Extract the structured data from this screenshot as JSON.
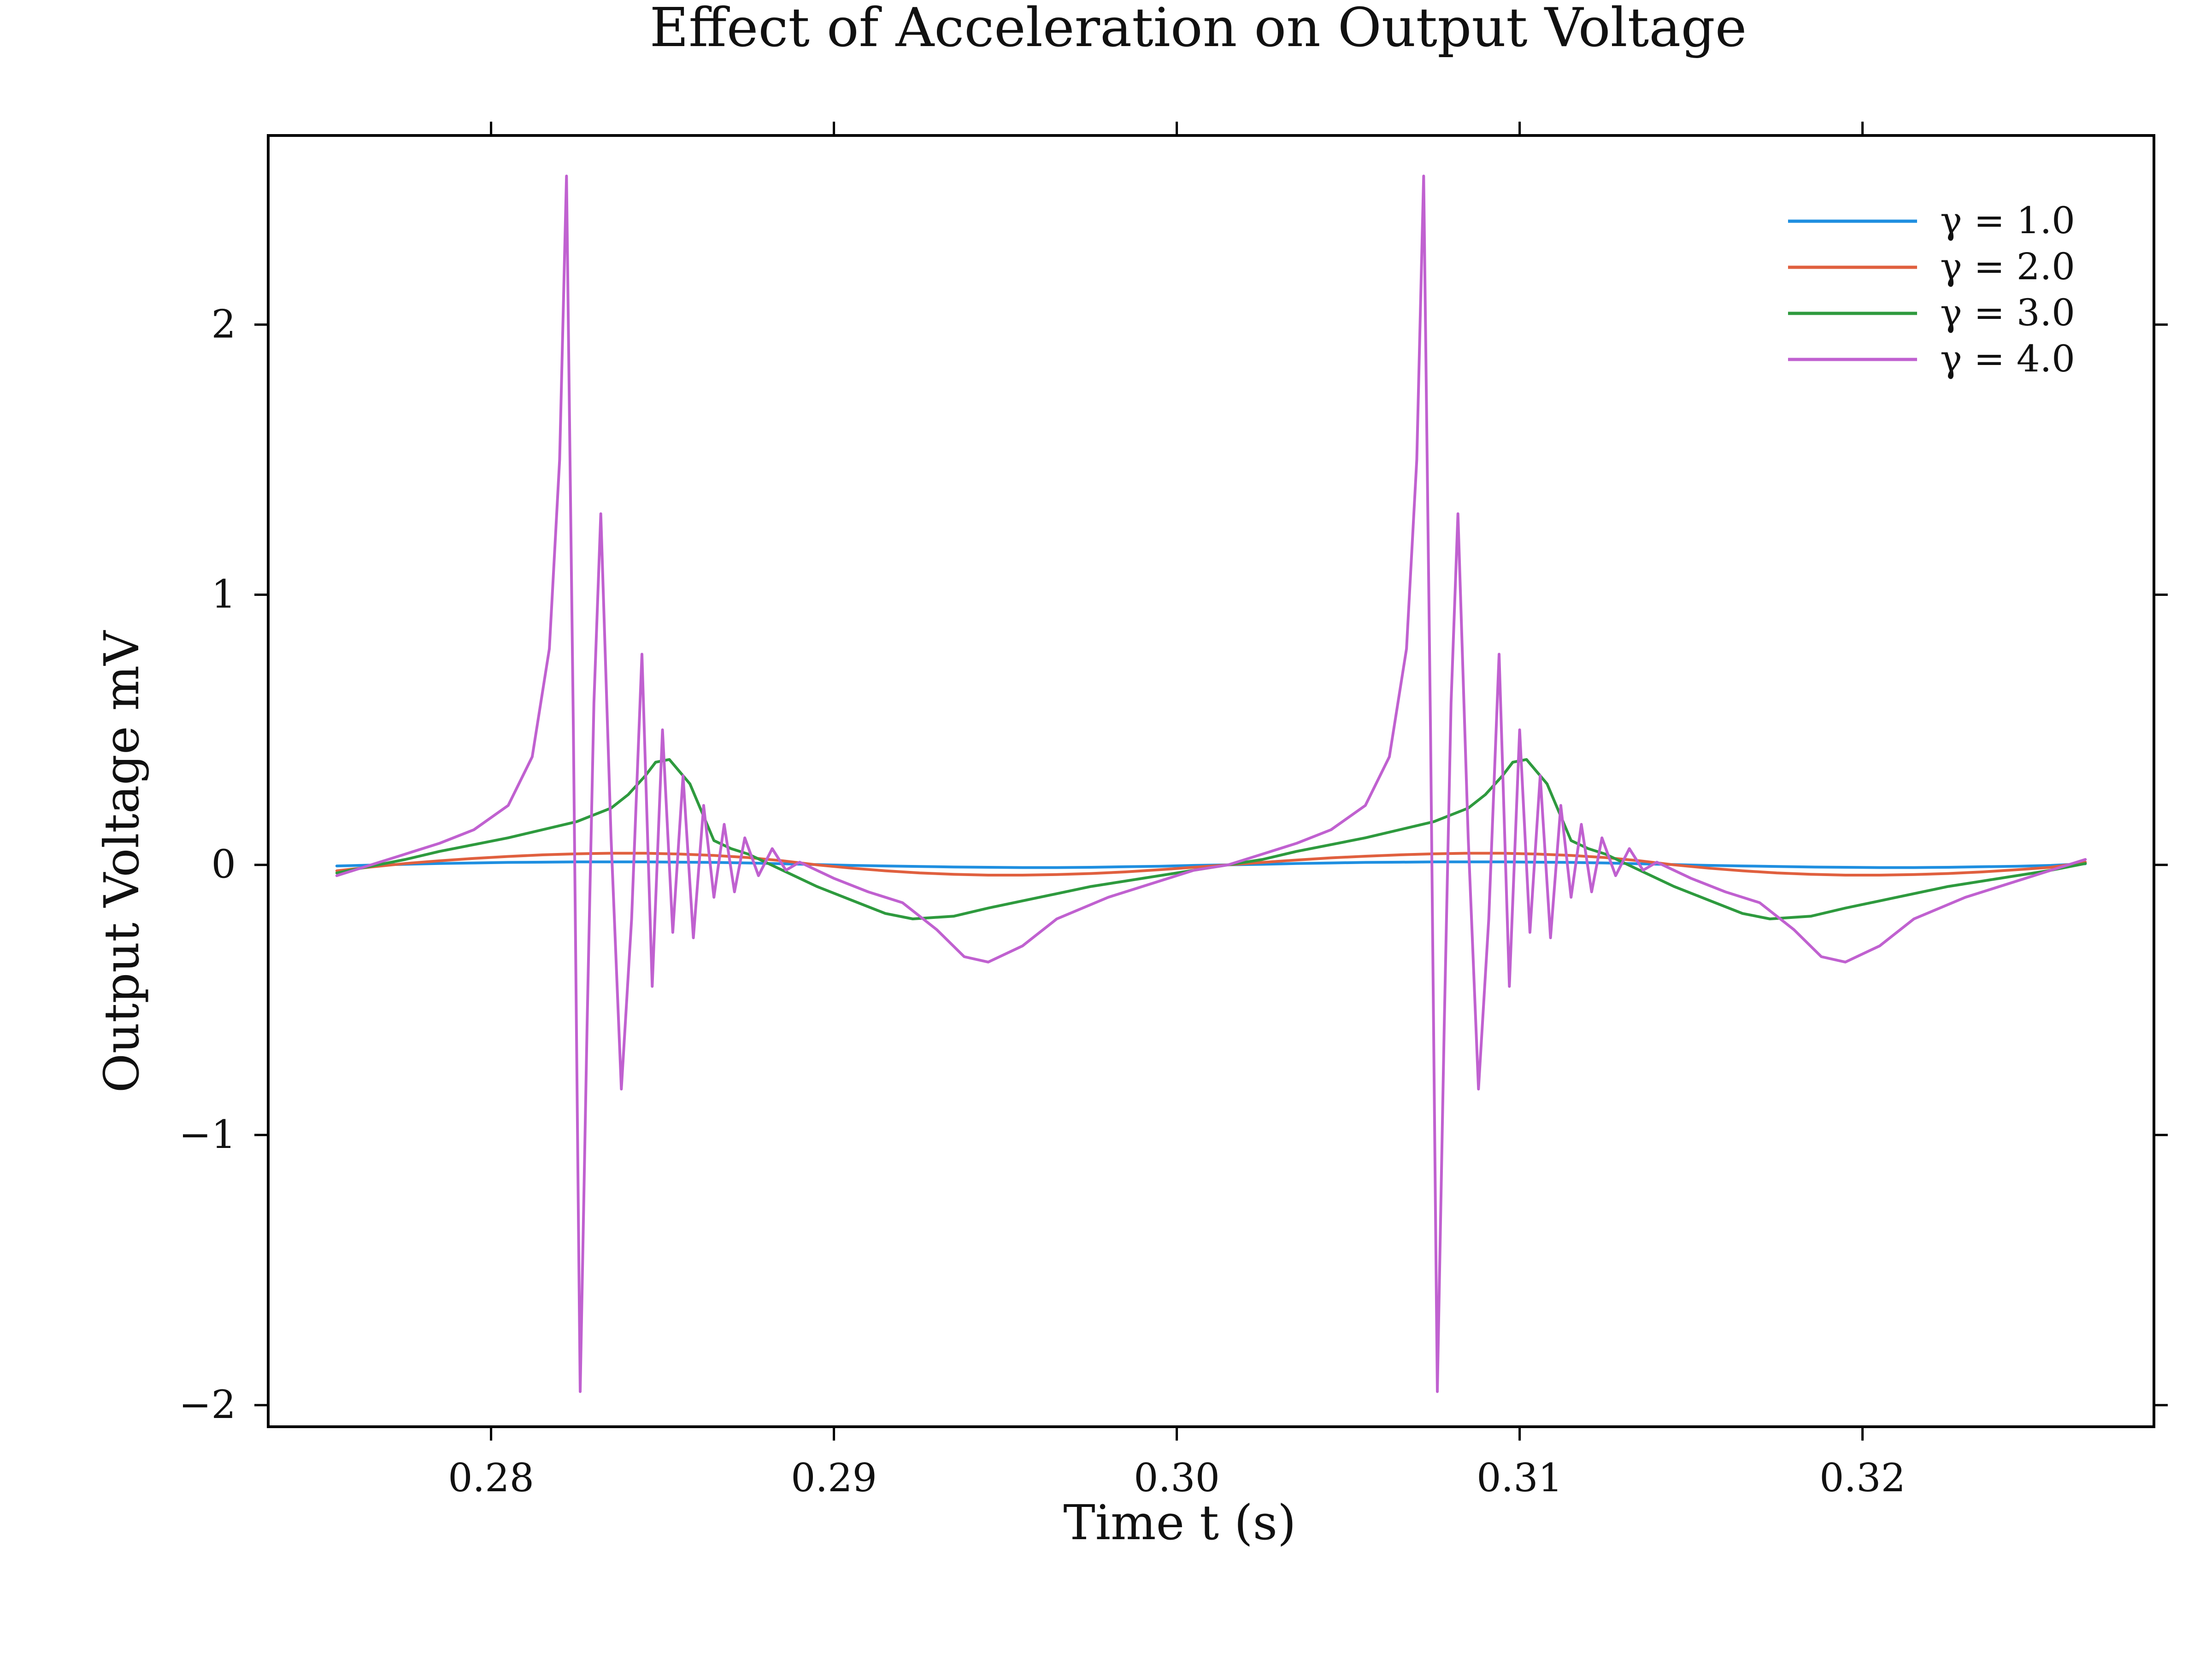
{
  "chart_data": {
    "type": "line",
    "title": "Effect of Acceleration on Output Voltage",
    "xlabel": "Time t (s)",
    "ylabel": "Output Voltage mV",
    "xlim": [
      0.2735,
      0.3285
    ],
    "ylim": [
      -2.08,
      2.7
    ],
    "x_ticks": [
      0.28,
      0.29,
      0.3,
      0.31,
      0.32
    ],
    "x_tick_labels": [
      "0.28",
      "0.29",
      "0.30",
      "0.31",
      "0.32"
    ],
    "y_ticks": [
      -2,
      -1,
      0,
      1,
      2
    ],
    "y_tick_labels": [
      "−2",
      "−1",
      "0",
      "1",
      "2"
    ],
    "grid": false,
    "legend_position": "top-right",
    "period": 0.025,
    "series": [
      {
        "name": "γ = 1.0",
        "color": "#1f8fe0",
        "x": [
          0.2755,
          0.2765,
          0.2775,
          0.2785,
          0.2795,
          0.2805,
          0.2815,
          0.2825,
          0.2835,
          0.2845,
          0.2855,
          0.2865,
          0.2875,
          0.2885,
          0.2895,
          0.2905,
          0.2915,
          0.2925,
          0.2935,
          0.2945,
          0.2955,
          0.2965,
          0.2975,
          0.2985,
          0.2995,
          0.3005,
          0.3015,
          0.3025,
          0.3035,
          0.3045,
          0.3055,
          0.3065,
          0.3075,
          0.3085,
          0.3095,
          0.3105,
          0.3115,
          0.3125,
          0.3135,
          0.3145,
          0.3155,
          0.3165,
          0.3175,
          0.3185,
          0.3195,
          0.3205,
          0.3215,
          0.3225,
          0.3235,
          0.3245,
          0.3255,
          0.3265
        ],
        "y": [
          -0.004,
          -0.001,
          0.002,
          0.005,
          0.007,
          0.009,
          0.01,
          0.011,
          0.011,
          0.011,
          0.01,
          0.009,
          0.007,
          0.004,
          0.001,
          -0.002,
          -0.004,
          -0.006,
          -0.008,
          -0.009,
          -0.01,
          -0.01,
          -0.009,
          -0.007,
          -0.005,
          -0.002,
          0.0,
          0.002,
          0.005,
          0.007,
          0.009,
          0.01,
          0.011,
          0.011,
          0.011,
          0.01,
          0.009,
          0.007,
          0.004,
          0.001,
          -0.002,
          -0.004,
          -0.006,
          -0.008,
          -0.009,
          -0.01,
          -0.01,
          -0.009,
          -0.007,
          -0.005,
          -0.002,
          0.004
        ]
      },
      {
        "name": "γ = 2.0",
        "color": "#e0603f",
        "x": [
          0.2755,
          0.2765,
          0.2775,
          0.2785,
          0.2795,
          0.2805,
          0.2815,
          0.2825,
          0.2835,
          0.2845,
          0.2855,
          0.2865,
          0.2875,
          0.2885,
          0.2895,
          0.2905,
          0.2915,
          0.2925,
          0.2935,
          0.2945,
          0.2955,
          0.2965,
          0.2975,
          0.2985,
          0.2995,
          0.3005,
          0.3015,
          0.3025,
          0.3035,
          0.3045,
          0.3055,
          0.3065,
          0.3075,
          0.3085,
          0.3095,
          0.3105,
          0.3115,
          0.3125,
          0.3135,
          0.3145,
          0.3155,
          0.3165,
          0.3175,
          0.3185,
          0.3195,
          0.3205,
          0.3215,
          0.3225,
          0.3235,
          0.3245,
          0.3255,
          0.3265
        ],
        "y": [
          -0.022,
          -0.008,
          0.005,
          0.015,
          0.024,
          0.031,
          0.037,
          0.041,
          0.043,
          0.043,
          0.04,
          0.035,
          0.027,
          0.015,
          0.0,
          -0.012,
          -0.022,
          -0.03,
          -0.035,
          -0.038,
          -0.038,
          -0.036,
          -0.032,
          -0.026,
          -0.018,
          -0.009,
          0.0,
          0.009,
          0.018,
          0.026,
          0.032,
          0.037,
          0.041,
          0.043,
          0.043,
          0.04,
          0.035,
          0.027,
          0.015,
          0.0,
          -0.012,
          -0.022,
          -0.03,
          -0.035,
          -0.038,
          -0.038,
          -0.036,
          -0.032,
          -0.026,
          -0.018,
          -0.009,
          0.01
        ]
      },
      {
        "name": "γ = 3.0",
        "color": "#2e9a3e",
        "x": [
          0.2755,
          0.2765,
          0.2775,
          0.2785,
          0.2795,
          0.2805,
          0.2815,
          0.2825,
          0.2835,
          0.284,
          0.2845,
          0.2848,
          0.2852,
          0.2858,
          0.2865,
          0.287,
          0.2875,
          0.2885,
          0.2895,
          0.2905,
          0.2915,
          0.2923,
          0.2935,
          0.2945,
          0.296,
          0.2975,
          0.299,
          0.3005,
          0.3015,
          0.3025,
          0.3035,
          0.3045,
          0.3055,
          0.3065,
          0.3075,
          0.3085,
          0.309,
          0.3095,
          0.3098,
          0.3102,
          0.3108,
          0.3115,
          0.312,
          0.3125,
          0.3135,
          0.3145,
          0.3155,
          0.3165,
          0.3173,
          0.3185,
          0.3195,
          0.321,
          0.3225,
          0.324,
          0.3255,
          0.3265
        ],
        "y": [
          -0.03,
          -0.005,
          0.02,
          0.05,
          0.075,
          0.1,
          0.13,
          0.16,
          0.21,
          0.26,
          0.33,
          0.38,
          0.39,
          0.3,
          0.09,
          0.06,
          0.04,
          -0.02,
          -0.08,
          -0.13,
          -0.18,
          -0.2,
          -0.19,
          -0.16,
          -0.12,
          -0.08,
          -0.05,
          -0.02,
          0.0,
          0.02,
          0.05,
          0.075,
          0.1,
          0.13,
          0.16,
          0.21,
          0.26,
          0.33,
          0.38,
          0.39,
          0.3,
          0.09,
          0.06,
          0.04,
          -0.02,
          -0.08,
          -0.13,
          -0.18,
          -0.2,
          -0.19,
          -0.16,
          -0.12,
          -0.08,
          -0.05,
          -0.02,
          0.005
        ]
      },
      {
        "name": "γ = 4.0",
        "color": "#c061d0",
        "x": [
          0.2755,
          0.2765,
          0.2775,
          0.2785,
          0.2795,
          0.2805,
          0.2812,
          0.2817,
          0.282,
          0.2822,
          0.2824,
          0.2826,
          0.2828,
          0.283,
          0.2832,
          0.2835,
          0.2838,
          0.2841,
          0.2844,
          0.2847,
          0.285,
          0.2853,
          0.2856,
          0.2859,
          0.2862,
          0.2865,
          0.2868,
          0.2871,
          0.2874,
          0.2878,
          0.2882,
          0.2886,
          0.289,
          0.29,
          0.291,
          0.292,
          0.293,
          0.2938,
          0.2945,
          0.2955,
          0.2965,
          0.298,
          0.2995,
          0.3005,
          0.3015,
          0.3025,
          0.3035,
          0.3045,
          0.3055,
          0.3062,
          0.3067,
          0.307,
          0.3072,
          0.3074,
          0.3076,
          0.3078,
          0.308,
          0.3082,
          0.3085,
          0.3088,
          0.3091,
          0.3094,
          0.3097,
          0.31,
          0.3103,
          0.3106,
          0.3109,
          0.3112,
          0.3115,
          0.3118,
          0.3121,
          0.3124,
          0.3128,
          0.3132,
          0.3136,
          0.314,
          0.315,
          0.316,
          0.317,
          0.318,
          0.3188,
          0.3195,
          0.3205,
          0.3215,
          0.323,
          0.3245,
          0.3255,
          0.3265
        ],
        "y": [
          -0.04,
          0.0,
          0.04,
          0.08,
          0.13,
          0.22,
          0.4,
          0.8,
          1.5,
          2.55,
          0.5,
          -1.95,
          -0.6,
          0.6,
          1.3,
          0.1,
          -0.83,
          -0.2,
          0.78,
          -0.45,
          0.5,
          -0.25,
          0.33,
          -0.27,
          0.22,
          -0.12,
          0.15,
          -0.1,
          0.1,
          -0.04,
          0.06,
          -0.02,
          0.01,
          -0.05,
          -0.1,
          -0.14,
          -0.24,
          -0.34,
          -0.36,
          -0.3,
          -0.2,
          -0.12,
          -0.06,
          -0.02,
          0.0,
          0.04,
          0.08,
          0.13,
          0.22,
          0.4,
          0.8,
          1.5,
          2.55,
          0.5,
          -1.95,
          -0.6,
          0.6,
          1.3,
          0.1,
          -0.83,
          -0.2,
          0.78,
          -0.45,
          0.5,
          -0.25,
          0.33,
          -0.27,
          0.22,
          -0.12,
          0.15,
          -0.1,
          0.1,
          -0.04,
          0.06,
          -0.02,
          0.01,
          -0.05,
          -0.1,
          -0.14,
          -0.24,
          -0.34,
          -0.36,
          -0.3,
          -0.2,
          -0.12,
          -0.06,
          -0.02,
          0.02
        ]
      }
    ]
  }
}
